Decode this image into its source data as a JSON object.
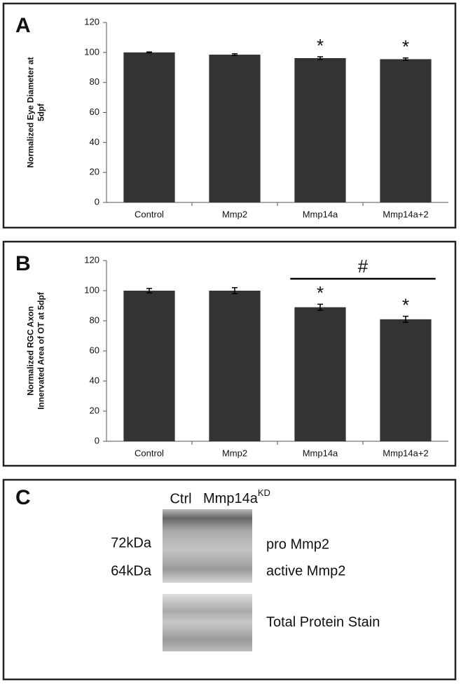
{
  "chart_data": [
    {
      "type": "bar",
      "panel": "A",
      "ylabel": [
        "Normalized Eye Diameter at",
        "5dpf"
      ],
      "categories": [
        "Control",
        "Mmp2",
        "Mmp14a",
        "Mmp14a+2"
      ],
      "values": [
        100,
        98.5,
        96.2,
        95.5
      ],
      "errors": [
        0.3,
        0.6,
        0.9,
        0.8
      ],
      "annotations": [
        null,
        null,
        "*",
        "*"
      ],
      "color": "#333333",
      "ylim": [
        0,
        120
      ],
      "yticks": [
        0,
        20,
        40,
        60,
        80,
        100,
        120
      ],
      "grid": false
    },
    {
      "type": "bar",
      "panel": "B",
      "ylabel": [
        "Normalized RGC Axon",
        "Innervated Area of OT at 5dpf"
      ],
      "categories": [
        "Control",
        "Mmp2",
        "Mmp14a",
        "Mmp14a+2"
      ],
      "values": [
        100,
        100,
        89,
        81
      ],
      "errors": [
        1.5,
        2,
        2,
        2
      ],
      "annotations": [
        null,
        null,
        "*",
        "*"
      ],
      "bracket": {
        "label": "#",
        "span": [
          "Mmp14a",
          "Mmp14a+2"
        ]
      },
      "color": "#333333",
      "ylim": [
        0,
        120
      ],
      "yticks": [
        0,
        20,
        40,
        60,
        80,
        100,
        120
      ],
      "grid": false
    }
  ],
  "panel_c": {
    "panel": "C",
    "lanes": [
      "Ctrl",
      "Mmp14a"
    ],
    "lane_superscript": "KD",
    "sizes": [
      "72kDa",
      "64kDa"
    ],
    "bands": [
      "pro Mmp2",
      "active Mmp2"
    ],
    "loading": "Total Protein Stain"
  }
}
